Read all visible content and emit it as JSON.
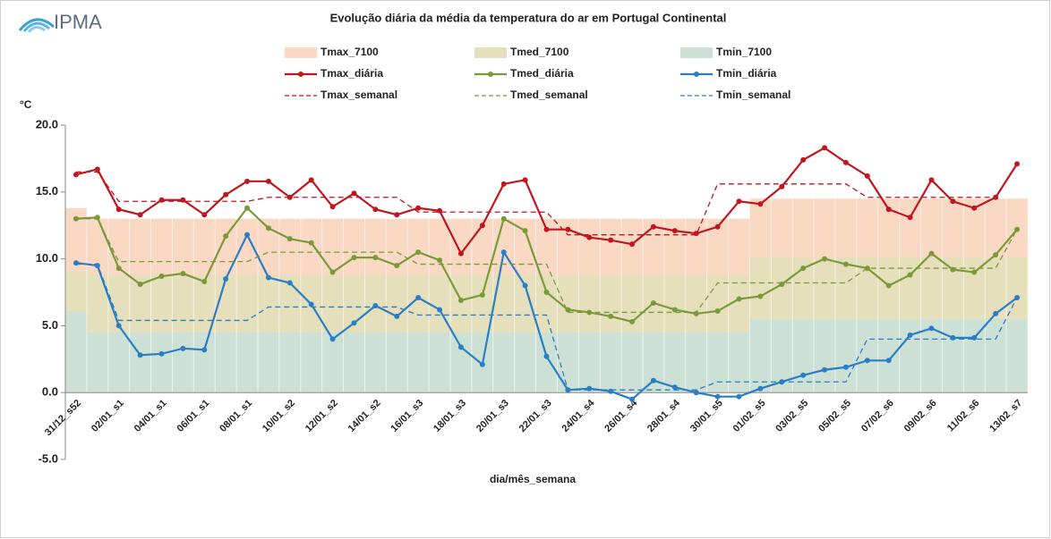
{
  "logo": "IPMA",
  "chart_data": {
    "type": "line",
    "title": "Evolução diária da média da temperatura do ar em Portugal Continental",
    "y_label": "°C",
    "x_label": "dia/mês_semana",
    "categories": [
      "31/12_s52",
      null,
      "02/01_s1",
      null,
      "04/01_s1",
      null,
      "06/01_s1",
      null,
      "08/01_s1",
      null,
      "10/01_s2",
      null,
      "12/01_s2",
      null,
      "14/01_s2",
      null,
      "16/01_s3",
      null,
      "18/01_s3",
      null,
      "20/01_s3",
      null,
      "22/01_s3",
      null,
      "24/01_s4",
      null,
      "26/01_s4",
      null,
      "28/01_s4",
      null,
      "30/01_s5",
      null,
      "01/02_s5",
      null,
      "03/02_s5",
      null,
      "05/02_s5",
      null,
      "07/02_s6",
      null,
      "09/02_s6",
      null,
      "11/02_s6",
      null,
      "13/02_s7"
    ],
    "ylim": [
      -5,
      20
    ],
    "yticks": [
      {
        "value": -5,
        "label": "-5.0"
      },
      {
        "value": 0,
        "label": "0.0"
      },
      {
        "value": 5,
        "label": "5.0"
      },
      {
        "value": 10,
        "label": "10.0"
      },
      {
        "value": 15,
        "label": "15.0"
      },
      {
        "value": 20,
        "label": "20.0"
      }
    ],
    "series": [
      {
        "name": "Tmax_7100",
        "style": "area",
        "color": "#f9d8c4",
        "values": [
          13.8,
          13,
          13,
          13,
          13,
          13,
          13,
          13,
          13,
          13,
          13,
          13,
          13,
          13,
          13,
          13,
          13,
          13,
          13,
          13,
          13,
          13,
          13,
          13,
          13,
          13,
          13,
          13,
          13,
          13,
          13,
          13,
          14.5,
          14.5,
          14.5,
          14.5,
          14.5,
          14.5,
          14.5,
          14.5,
          14.5,
          14.5,
          14.5,
          14.5,
          14.5
        ]
      },
      {
        "name": "Tmed_7100",
        "style": "area",
        "color": "#e6dfbc",
        "values": [
          9,
          8.8,
          8.8,
          8.8,
          8.8,
          8.8,
          8.8,
          8.8,
          8.8,
          8.8,
          8.8,
          8.8,
          8.8,
          8.8,
          8.8,
          8.8,
          8.8,
          8.8,
          8.8,
          8.8,
          8.8,
          8.8,
          8.8,
          8.8,
          8.8,
          8.8,
          8.8,
          8.8,
          8.8,
          8.8,
          8.8,
          8.8,
          10.1,
          10.1,
          10.1,
          10.1,
          10.1,
          10.1,
          10.1,
          10.1,
          10.1,
          10.1,
          10.1,
          10.1,
          10.1
        ]
      },
      {
        "name": "Tmin_7100",
        "style": "area",
        "color": "#cde0d6",
        "values": [
          6.1,
          4.5,
          4.5,
          4.5,
          4.5,
          4.5,
          4.5,
          4.5,
          4.5,
          4.5,
          4.5,
          4.5,
          4.5,
          4.5,
          4.5,
          4.5,
          4.5,
          4.5,
          4.5,
          4.5,
          4.5,
          4.5,
          4.5,
          4.5,
          4.5,
          4.5,
          4.5,
          4.5,
          4.5,
          4.5,
          4.5,
          4.5,
          5.5,
          5.5,
          5.5,
          5.5,
          5.5,
          5.5,
          5.5,
          5.5,
          5.5,
          5.5,
          5.5,
          5.5,
          5.5
        ]
      },
      {
        "name": "Tmax_diária",
        "style": "solid",
        "color": "#c0161e",
        "values": [
          16.3,
          16.7,
          13.7,
          13.3,
          14.4,
          14.4,
          13.3,
          14.8,
          15.8,
          15.8,
          14.6,
          15.9,
          13.9,
          14.9,
          13.7,
          13.3,
          13.8,
          13.6,
          10.4,
          12.5,
          15.6,
          15.9,
          12.2,
          12.2,
          11.6,
          11.4,
          11.1,
          12.4,
          12.1,
          11.9,
          12.4,
          14.3,
          14.1,
          15.4,
          17.4,
          18.3,
          17.2,
          16.2,
          13.7,
          13.1,
          15.9,
          14.3,
          13.8,
          14.6,
          17.1
        ]
      },
      {
        "name": "Tmed_diária",
        "style": "solid",
        "color": "#7a9a3a",
        "values": [
          13,
          13.1,
          9.3,
          8.1,
          8.7,
          8.9,
          8.3,
          11.7,
          13.8,
          12.3,
          11.5,
          11.2,
          9,
          10.1,
          10.1,
          9.5,
          10.5,
          9.9,
          6.9,
          7.3,
          13,
          12.1,
          7.5,
          6.2,
          6,
          5.7,
          5.3,
          6.7,
          6.2,
          5.9,
          6.1,
          7,
          7.2,
          8.1,
          9.3,
          10,
          9.6,
          9.3,
          8,
          8.8,
          10.4,
          9.2,
          9,
          10.3,
          12.2
        ]
      },
      {
        "name": "Tmin_diária",
        "style": "solid",
        "color": "#2a7ec4",
        "values": [
          9.7,
          9.5,
          5,
          2.8,
          2.9,
          3.3,
          3.2,
          8.5,
          11.8,
          8.6,
          8.2,
          6.6,
          4,
          5.2,
          6.5,
          5.7,
          7.1,
          6.2,
          3.4,
          2.1,
          10.5,
          8,
          2.7,
          0.2,
          0.3,
          0.1,
          -0.5,
          0.9,
          0.4,
          0,
          -0.3,
          -0.3,
          0.3,
          0.8,
          1.3,
          1.7,
          1.9,
          2.4,
          2.4,
          4.3,
          4.8,
          4.1,
          4.1,
          5.9,
          7.1
        ]
      },
      {
        "name": "Tmax_semanal",
        "style": "dashed",
        "color": "#c0161e",
        "values": [
          16.5,
          16.5,
          14.3,
          14.3,
          14.3,
          14.3,
          14.3,
          14.3,
          14.3,
          14.6,
          14.6,
          14.6,
          14.6,
          14.6,
          14.6,
          14.6,
          13.5,
          13.5,
          13.5,
          13.5,
          13.5,
          13.5,
          13.5,
          11.8,
          11.8,
          11.8,
          11.8,
          11.8,
          11.8,
          11.8,
          15.6,
          15.6,
          15.6,
          15.6,
          15.6,
          15.6,
          15.6,
          14.6,
          14.6,
          14.6,
          14.6,
          14.6,
          14.6,
          14.6,
          17.1
        ]
      },
      {
        "name": "Tmed_semanal",
        "style": "dashed",
        "color": "#7a9a3a",
        "values": [
          13,
          13,
          9.8,
          9.8,
          9.8,
          9.8,
          9.8,
          9.8,
          9.8,
          10.5,
          10.5,
          10.5,
          10.5,
          10.5,
          10.5,
          10.5,
          9.6,
          9.6,
          9.6,
          9.6,
          9.6,
          9.6,
          9.6,
          6,
          6,
          6,
          6,
          6,
          6,
          6,
          8.2,
          8.2,
          8.2,
          8.2,
          8.2,
          8.2,
          8.2,
          9.3,
          9.3,
          9.3,
          9.3,
          9.3,
          9.3,
          9.3,
          12.2
        ]
      },
      {
        "name": "Tmin_semanal",
        "style": "dashed",
        "color": "#2a7ec4",
        "values": [
          9.6,
          9.6,
          5.4,
          5.4,
          5.4,
          5.4,
          5.4,
          5.4,
          5.4,
          6.4,
          6.4,
          6.4,
          6.4,
          6.4,
          6.4,
          6.4,
          5.8,
          5.8,
          5.8,
          5.8,
          5.8,
          5.8,
          5.8,
          0.2,
          0.2,
          0.2,
          0.2,
          0.2,
          0.2,
          0.2,
          0.8,
          0.8,
          0.8,
          0.8,
          0.8,
          0.8,
          0.8,
          4,
          4,
          4,
          4,
          4,
          4,
          4,
          7.1
        ]
      }
    ]
  }
}
